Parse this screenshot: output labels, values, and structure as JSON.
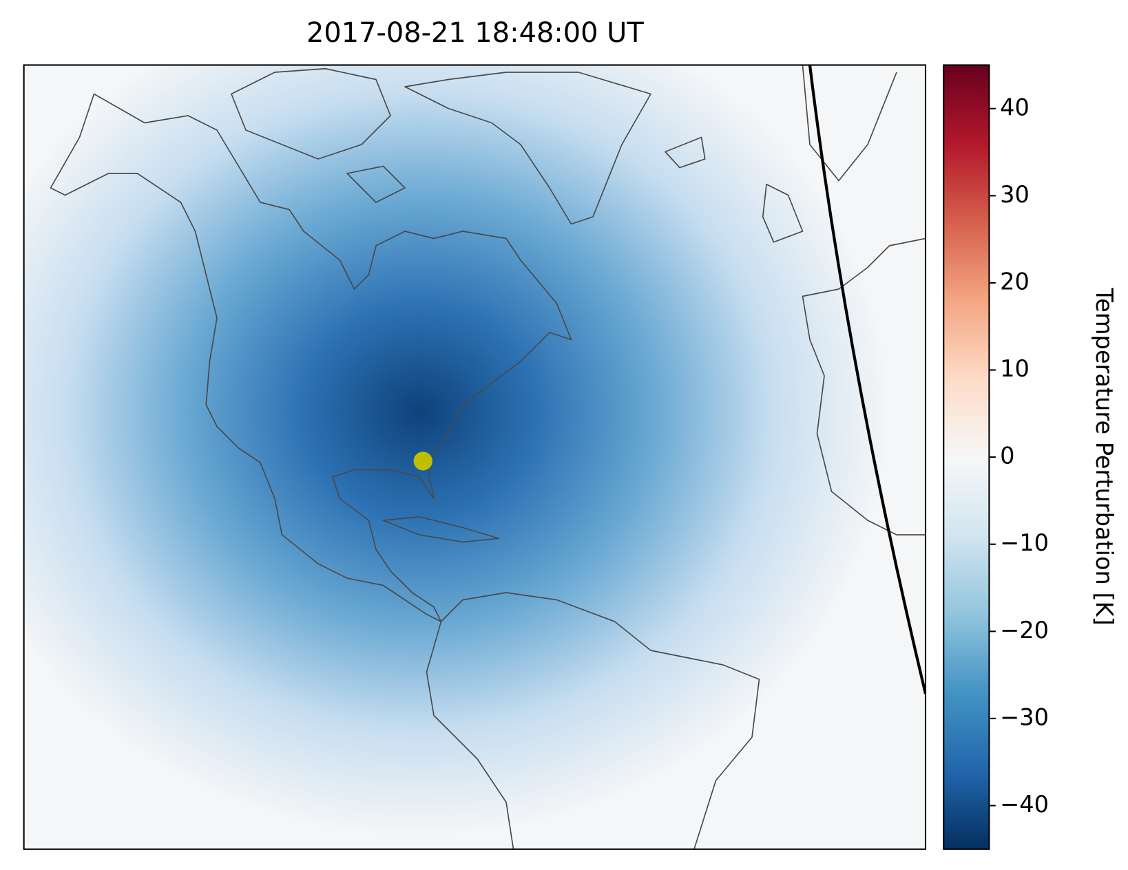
{
  "title": "2017-08-21 18:48:00 UT",
  "colorbar": {
    "label": "Temperature Perturbation [K]",
    "lim": [
      -45,
      45
    ],
    "ticks": [
      {
        "value": -40,
        "label": "−40"
      },
      {
        "value": -30,
        "label": "−30"
      },
      {
        "value": -20,
        "label": "−20"
      },
      {
        "value": -10,
        "label": "−10"
      },
      0,
      10,
      20,
      30,
      40
    ]
  },
  "field_peak": -42
}
